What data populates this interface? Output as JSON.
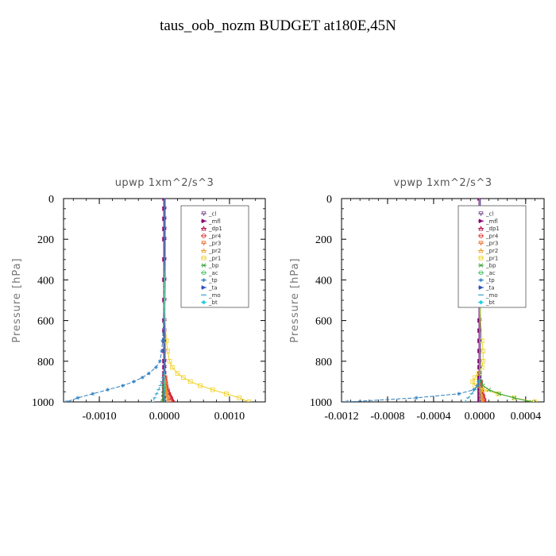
{
  "page": {
    "title": "taus_oob_nozm  BUDGET at180E,45N"
  },
  "legend_entries": [
    {
      "name": "_cl",
      "color": "#7a4a8c",
      "marker": "triangle-down"
    },
    {
      "name": "_mfl",
      "color": "#8b0070",
      "marker": "triangle-right"
    },
    {
      "name": "_dp1",
      "color": "#b0003a",
      "marker": "triangle-up"
    },
    {
      "name": "_pr4",
      "color": "#e03030",
      "marker": "circle"
    },
    {
      "name": "_pr3",
      "color": "#f07030",
      "marker": "triangle-down"
    },
    {
      "name": "_pr2",
      "color": "#f0a030",
      "marker": "triangle-up"
    },
    {
      "name": "_pr1",
      "color": "#f0d020",
      "marker": "square"
    },
    {
      "name": "_bp",
      "color": "#30a030",
      "marker": "x"
    },
    {
      "name": "_ac",
      "color": "#40c060",
      "marker": "circle"
    },
    {
      "name": "_tp",
      "color": "#3080c0",
      "marker": "star"
    },
    {
      "name": "_ta",
      "color": "#3050c0",
      "marker": "triangle-right"
    },
    {
      "name": "_mo",
      "color": "#30a0c0",
      "marker": "dash"
    },
    {
      "name": "_bt",
      "color": "#20d0e0",
      "marker": "diamond"
    }
  ],
  "chart_data": [
    {
      "type": "line",
      "title": "upwp   1xm^2/s^3",
      "ylabel": "Pressure  [hPa]",
      "xlabel": "",
      "xlim": [
        -0.00155,
        0.00155
      ],
      "ylim": [
        1000,
        0
      ],
      "y_inverted": true,
      "xticks": [
        -0.001,
        0.0,
        0.001
      ],
      "xtick_labels": [
        "-0.0010",
        "0.0000",
        "0.0010"
      ],
      "yticks": [
        0,
        200,
        400,
        600,
        800,
        1000
      ],
      "ytick_labels": [
        "0",
        "200",
        "400",
        "600",
        "800",
        "1000"
      ],
      "legend_position": "top-right",
      "pressure": [
        0,
        50,
        100,
        150,
        200,
        300,
        400,
        500,
        600,
        650,
        700,
        750,
        800,
        830,
        860,
        880,
        900,
        920,
        940,
        960,
        980,
        1000
      ],
      "series": [
        {
          "name": "_cl",
          "values": [
            0,
            0,
            0,
            0,
            0,
            0,
            0,
            0,
            0,
            0,
            0,
            0,
            0,
            0,
            0,
            0,
            0,
            0,
            0,
            0,
            0,
            0
          ]
        },
        {
          "name": "_mfl",
          "values": [
            0,
            0,
            0,
            0,
            0,
            0,
            0,
            0,
            0,
            0,
            0,
            0,
            0,
            0,
            0,
            0,
            0,
            0,
            0,
            0,
            0,
            0
          ]
        },
        {
          "name": "_dp1",
          "values": [
            0,
            0,
            0,
            0,
            0,
            0,
            0,
            0,
            0,
            0,
            0,
            0,
            0,
            0,
            0,
            1e-05,
            2e-05,
            3e-05,
            5e-05,
            8e-05,
            0.00011,
            0.00014
          ]
        },
        {
          "name": "_pr4",
          "values": [
            0,
            0,
            0,
            0,
            0,
            0,
            0,
            0,
            0,
            0,
            0,
            0,
            0,
            0,
            0,
            1e-05,
            2e-05,
            3e-05,
            5e-05,
            7e-05,
            0.0001,
            0.00013
          ]
        },
        {
          "name": "_pr3",
          "values": [
            0,
            0,
            0,
            0,
            0,
            0,
            0,
            0,
            0,
            0,
            0,
            0,
            0,
            0,
            0,
            1e-05,
            1e-05,
            2e-05,
            3e-05,
            4e-05,
            6e-05,
            8e-05
          ]
        },
        {
          "name": "_pr2",
          "values": [
            0,
            0,
            0,
            0,
            0,
            0,
            0,
            0,
            0,
            0,
            0,
            0,
            0,
            0,
            0,
            0,
            1e-05,
            1e-05,
            2e-05,
            3e-05,
            4e-05,
            5e-05
          ]
        },
        {
          "name": "_pr1",
          "values": [
            0,
            0,
            0,
            0,
            0,
            0,
            5e-06,
            1e-05,
            1.5e-05,
            2e-05,
            3e-05,
            5e-05,
            8e-05,
            0.00012,
            0.0002,
            0.00029,
            0.0004,
            0.00055,
            0.00074,
            0.00095,
            0.00115,
            0.0013
          ]
        },
        {
          "name": "_bp",
          "values": [
            0,
            0,
            0,
            0,
            0,
            0,
            0,
            0,
            0,
            0,
            0,
            0,
            0,
            0,
            0,
            0,
            0,
            -1e-05,
            -1e-05,
            -2e-05,
            -2e-05,
            -3e-05
          ]
        },
        {
          "name": "_ac",
          "values": [
            0,
            0,
            0,
            0,
            0,
            0,
            0,
            0,
            0,
            0,
            0,
            0,
            0,
            0,
            0,
            0,
            0,
            0,
            0,
            0,
            0,
            0
          ]
        },
        {
          "name": "_tp",
          "values": [
            0,
            0,
            0,
            0,
            0,
            0,
            -5e-06,
            -1e-05,
            -1.5e-05,
            -2e-05,
            -3e-05,
            -4e-05,
            -7e-05,
            -0.00013,
            -0.00024,
            -0.00034,
            -0.00047,
            -0.00064,
            -0.00087,
            -0.0011,
            -0.00133,
            -0.0015
          ]
        },
        {
          "name": "_ta",
          "values": [
            0,
            0,
            0,
            0,
            0,
            0,
            0,
            0,
            0,
            0,
            0,
            0,
            0,
            0,
            0,
            0,
            0,
            0,
            0,
            0,
            0,
            0
          ]
        },
        {
          "name": "_mo",
          "values": [
            0,
            0,
            0,
            0,
            0,
            0,
            0,
            0,
            0,
            0,
            0,
            0,
            0,
            0,
            -1e-05,
            -2e-05,
            -4e-05,
            -6e-05,
            -9e-05,
            -0.00012,
            -0.00015,
            -0.00018
          ]
        },
        {
          "name": "_bt",
          "values": [
            0,
            0,
            0,
            0,
            0,
            0,
            0,
            0,
            0,
            0,
            0,
            0,
            0,
            0,
            0,
            0,
            0,
            0,
            0,
            0,
            0,
            0
          ]
        }
      ]
    },
    {
      "type": "line",
      "title": "vpwp   1xm^2/s^3",
      "ylabel": "Pressure  [hPa]",
      "xlabel": "",
      "xlim": [
        -0.0012,
        0.00056
      ],
      "ylim": [
        1000,
        0
      ],
      "y_inverted": true,
      "xticks": [
        -0.0012,
        -0.0008,
        -0.0004,
        0.0,
        0.0004
      ],
      "xtick_labels": [
        "-0.0012",
        "-0.0008",
        "-0.0004",
        "0.0000",
        "0.0004"
      ],
      "yticks": [
        0,
        200,
        400,
        600,
        800,
        1000
      ],
      "ytick_labels": [
        "0",
        "200",
        "400",
        "600",
        "800",
        "1000"
      ],
      "legend_position": "top-right",
      "pressure": [
        0,
        50,
        100,
        150,
        200,
        300,
        400,
        500,
        600,
        650,
        700,
        750,
        800,
        830,
        860,
        880,
        900,
        920,
        940,
        960,
        980,
        1000
      ],
      "series": [
        {
          "name": "_cl",
          "values": [
            0,
            0,
            0,
            0,
            0,
            0,
            0,
            0,
            0,
            0,
            0,
            0,
            0,
            0,
            0,
            0,
            0,
            0,
            0,
            0,
            0,
            0
          ]
        },
        {
          "name": "_mfl",
          "values": [
            0,
            0,
            0,
            0,
            0,
            0,
            0,
            0,
            0,
            0,
            0,
            0,
            0,
            0,
            0,
            0,
            0,
            0,
            0,
            0,
            0,
            0
          ]
        },
        {
          "name": "_dp1",
          "values": [
            0,
            0,
            0,
            0,
            0,
            0,
            0,
            0,
            0,
            0,
            0,
            0,
            0,
            0,
            0,
            0,
            1e-05,
            1e-05,
            2e-05,
            3e-05,
            4e-05,
            5e-05
          ]
        },
        {
          "name": "_pr4",
          "values": [
            0,
            0,
            0,
            0,
            0,
            0,
            0,
            0,
            0,
            0,
            0,
            0,
            0,
            0,
            0,
            0,
            1e-05,
            1e-05,
            2e-05,
            2e-05,
            3e-05,
            4e-05
          ]
        },
        {
          "name": "_pr3",
          "values": [
            0,
            0,
            0,
            0,
            0,
            0,
            0,
            0,
            0,
            0,
            0,
            0,
            0,
            0,
            0,
            0,
            0,
            1e-05,
            1e-05,
            2e-05,
            2e-05,
            3e-05
          ]
        },
        {
          "name": "_pr2",
          "values": [
            0,
            0,
            0,
            0,
            0,
            0,
            0,
            0,
            0,
            0,
            0,
            0,
            0,
            0,
            0,
            0,
            0,
            0,
            1e-05,
            1e-05,
            2e-05,
            2e-05
          ]
        },
        {
          "name": "_pr1",
          "values": [
            0,
            0,
            0,
            0,
            0,
            0,
            0,
            5e-06,
            1e-05,
            1.5e-05,
            2e-05,
            3e-05,
            3e-05,
            2e-05,
            -1e-05,
            -4e-05,
            -6e-05,
            -4e-05,
            4e-05,
            0.00016,
            0.0003,
            0.00048
          ]
        },
        {
          "name": "_bp",
          "values": [
            0,
            0,
            0,
            0,
            0,
            0,
            0,
            0,
            0,
            0,
            0,
            0,
            0,
            0,
            0,
            0,
            1e-05,
            3e-05,
            8e-05,
            0.00017,
            0.0003,
            0.00045
          ]
        },
        {
          "name": "_ac",
          "values": [
            0,
            0,
            0,
            0,
            0,
            0,
            0,
            0,
            0,
            0,
            0,
            0,
            0,
            0,
            0,
            0,
            0,
            0,
            0,
            0,
            0,
            0
          ]
        },
        {
          "name": "_tp",
          "values": [
            0,
            0,
            0,
            0,
            0,
            0,
            0,
            0,
            0,
            0,
            0,
            0,
            0,
            0,
            0,
            0,
            -1e-05,
            -2e-05,
            -5e-05,
            -0.00018,
            -0.00055,
            -0.00115
          ]
        },
        {
          "name": "_ta",
          "values": [
            0,
            0,
            0,
            0,
            0,
            0,
            0,
            0,
            0,
            0,
            0,
            0,
            0,
            0,
            0,
            0,
            0,
            0,
            0,
            0,
            0,
            0
          ]
        },
        {
          "name": "_mo",
          "values": [
            0,
            0,
            0,
            0,
            0,
            0,
            0,
            0,
            0,
            0,
            0,
            0,
            0,
            0,
            0,
            0,
            -1e-05,
            -2e-05,
            -4e-05,
            -7e-05,
            -0.0001,
            -0.00013
          ]
        },
        {
          "name": "_bt",
          "values": [
            0,
            0,
            0,
            0,
            0,
            0,
            0,
            0,
            0,
            0,
            0,
            0,
            0,
            0,
            0,
            0,
            0,
            0,
            0,
            0,
            0,
            0
          ]
        }
      ]
    }
  ]
}
